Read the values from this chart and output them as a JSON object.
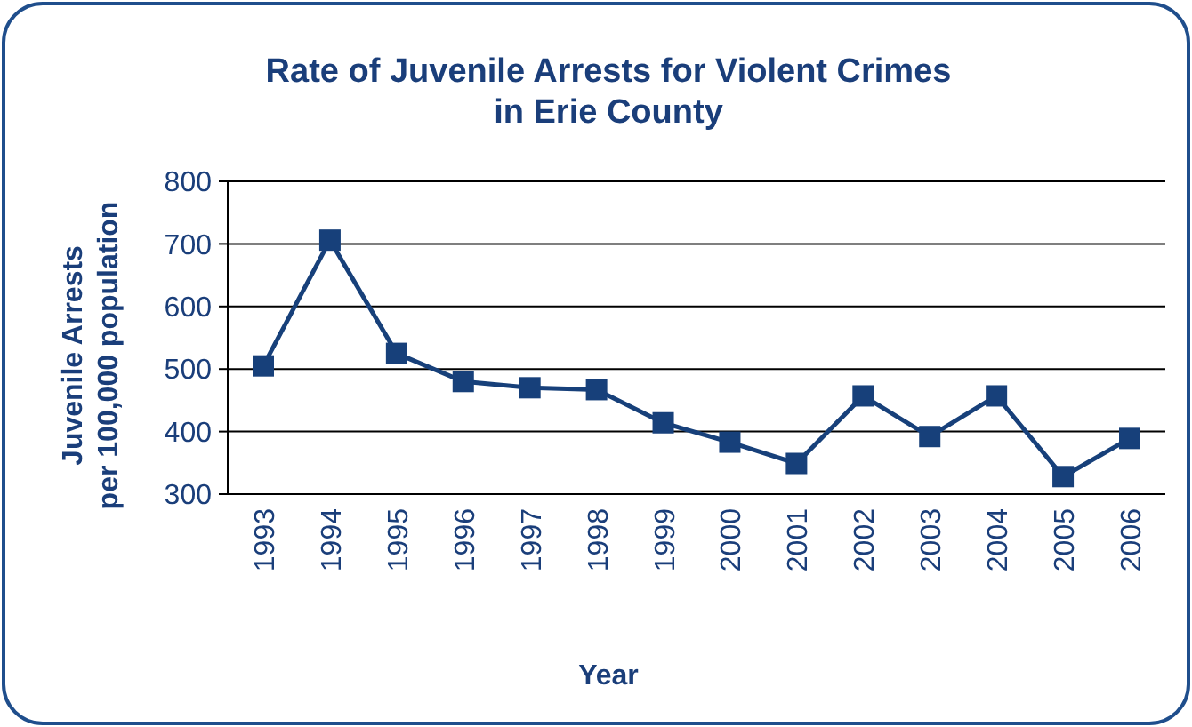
{
  "chart_data": {
    "type": "line",
    "title": "Rate of Juvenile Arrests for Violent Crimes\nin Erie County",
    "xlabel": "Year",
    "ylabel": "Juvenile Arrests\nper 100,000 population",
    "categories": [
      "1993",
      "1994",
      "1995",
      "1996",
      "1997",
      "1998",
      "1999",
      "2000",
      "2001",
      "2002",
      "2003",
      "2004",
      "2005",
      "2006"
    ],
    "series": [
      {
        "color": "#17407a",
        "values": [
          505,
          706,
          525,
          480,
          470,
          467,
          414,
          383,
          349,
          457,
          392,
          457,
          328,
          389
        ]
      }
    ],
    "ylim": [
      300,
      800
    ],
    "yticks": [
      300,
      400,
      500,
      600,
      700,
      800
    ],
    "grid": "y",
    "marker": "square",
    "line_style": "solid"
  }
}
